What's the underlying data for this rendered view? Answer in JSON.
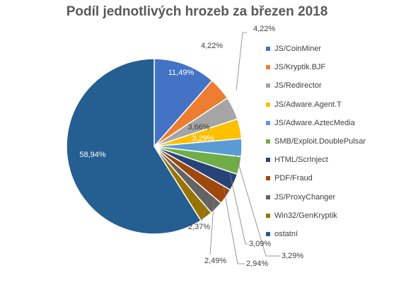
{
  "chart_data": {
    "type": "pie",
    "title": "Podíl jednotlivých hrozeb za březen 2018",
    "legend_position": "right",
    "slices": [
      {
        "name": "JS/CoinMiner",
        "value": 11.49,
        "label": "11,49%",
        "color": "#4472C4"
      },
      {
        "name": "JS/Kryptik.BJF",
        "value": 4.22,
        "label": "4,22%",
        "color": "#ED7D31"
      },
      {
        "name": "JS/Redirector",
        "value": 4.22,
        "label": "4,22%",
        "color": "#A5A5A5"
      },
      {
        "name": "JS/Adware.Agent.T",
        "value": 3.66,
        "label": "3,66%",
        "color": "#FFC000"
      },
      {
        "name": "JS/Adware.AztecMedia",
        "value": 3.29,
        "label": "3,29%",
        "color": "#5B9BD5"
      },
      {
        "name": "SMB/Exploit.DoublePulsar",
        "value": 3.29,
        "label": "3,29%",
        "color": "#70AD47"
      },
      {
        "name": "HTML/ScrInject",
        "value": 3.09,
        "label": "3,09%",
        "color": "#264478"
      },
      {
        "name": "PDF/Fraud",
        "value": 2.94,
        "label": "2,94%",
        "color": "#9E480E"
      },
      {
        "name": "JS/ProxyChanger",
        "value": 2.49,
        "label": "2,49%",
        "color": "#636363"
      },
      {
        "name": "Win32/GenKryptik",
        "value": 2.37,
        "label": "2,37%",
        "color": "#997300"
      },
      {
        "name": "ostatní",
        "value": 58.94,
        "label": "58,94%",
        "color": "#255E91"
      }
    ]
  }
}
